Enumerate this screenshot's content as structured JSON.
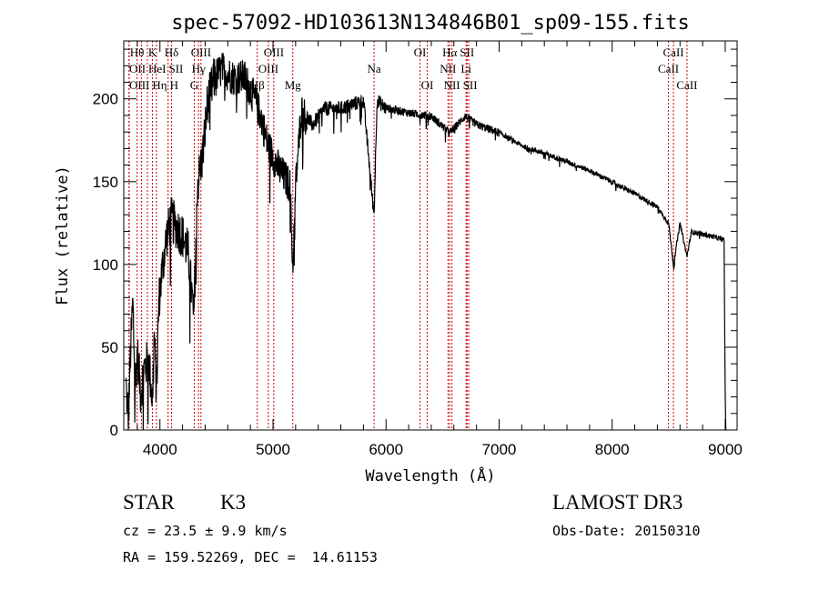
{
  "chart_data": {
    "type": "line",
    "title": "spec-57092-HD103613N134846B01_sp09-155.fits",
    "xlabel": "Wavelength (Å)",
    "ylabel": "Flux (relative)",
    "xlim": [
      3680,
      9105
    ],
    "ylim": [
      0,
      235
    ],
    "xticks": [
      4000,
      5000,
      6000,
      7000,
      8000,
      9000
    ],
    "yticks": [
      0,
      50,
      100,
      150,
      200
    ],
    "grid": false,
    "series": [
      {
        "name": "spectrum",
        "color": "#000000",
        "x": [
          3700,
          3720,
          3740,
          3760,
          3780,
          3800,
          3830,
          3860,
          3900,
          3934,
          3950,
          3969,
          3990,
          4020,
          4060,
          4100,
          4150,
          4200,
          4250,
          4300,
          4330,
          4380,
          4420,
          4480,
          4550,
          4650,
          4750,
          4850,
          4900,
          4950,
          5050,
          5150,
          5175,
          5200,
          5250,
          5350,
          5450,
          5600,
          5800,
          5894,
          5920,
          6000,
          6200,
          6400,
          6563,
          6700,
          6800,
          7000,
          7200,
          7500,
          7800,
          8000,
          8200,
          8400,
          8500,
          8542,
          8600,
          8662,
          8700,
          8900,
          8990,
          9000,
          9005
        ],
        "y": [
          30,
          10,
          50,
          80,
          30,
          50,
          25,
          40,
          45,
          20,
          60,
          25,
          80,
          100,
          120,
          130,
          125,
          120,
          110,
          70,
          150,
          170,
          200,
          215,
          220,
          215,
          215,
          200,
          190,
          175,
          160,
          150,
          100,
          150,
          195,
          185,
          195,
          195,
          200,
          130,
          200,
          195,
          192,
          190,
          180,
          190,
          185,
          180,
          172,
          165,
          157,
          150,
          143,
          135,
          125,
          100,
          125,
          105,
          120,
          117,
          115,
          20,
          0
        ]
      }
    ],
    "line_color": "#cc0000",
    "spectral_lines": {
      "tier1": [
        {
          "label": "Hθ",
          "wave": 3798
        },
        {
          "label": "K",
          "wave": 3934
        },
        {
          "label": "Hδ",
          "wave": 4102
        },
        {
          "label": "OIII",
          "wave": 4363
        },
        {
          "label": "OIII",
          "wave": 5007
        },
        {
          "label": "OI",
          "wave": 6300
        },
        {
          "label": "Hα",
          "wave": 6563
        },
        {
          "label": "SII",
          "wave": 6716
        },
        {
          "label": "CaII",
          "wave": 8542
        }
      ],
      "tier2": [
        {
          "label": "OII",
          "wave": 3727
        },
        {
          "label": "HeI",
          "wave": 3889
        },
        {
          "label": "SII",
          "wave": 4072
        },
        {
          "label": "Hγ",
          "wave": 4341
        },
        {
          "label": "OIII",
          "wave": 4959
        },
        {
          "label": "Na",
          "wave": 5894
        },
        {
          "label": "NII",
          "wave": 6548
        },
        {
          "label": "Li",
          "wave": 6708
        },
        {
          "label": "CaII",
          "wave": 8498
        }
      ],
      "tier3": [
        {
          "label": "OIII",
          "wave": 3727
        },
        {
          "label": "Hη",
          "wave": 3836
        },
        {
          "label": "H",
          "wave": 3969
        },
        {
          "label": "G",
          "wave": 4304
        },
        {
          "label": "Hβ",
          "wave": 4861
        },
        {
          "label": "Mg",
          "wave": 5175
        },
        {
          "label": "OI",
          "wave": 6364
        },
        {
          "label": "NII",
          "wave": 6583
        },
        {
          "label": "SII",
          "wave": 6731
        },
        {
          "label": "CaII",
          "wave": 8662
        }
      ]
    }
  },
  "info": {
    "class": "STAR",
    "subclass": "K3",
    "survey": "LAMOST DR3",
    "cz": "cz = 23.5 ± 9.9 km/s",
    "obs_date": "Obs-Date: 20150310",
    "coords": "RA = 159.52269, DEC =  14.61153"
  }
}
